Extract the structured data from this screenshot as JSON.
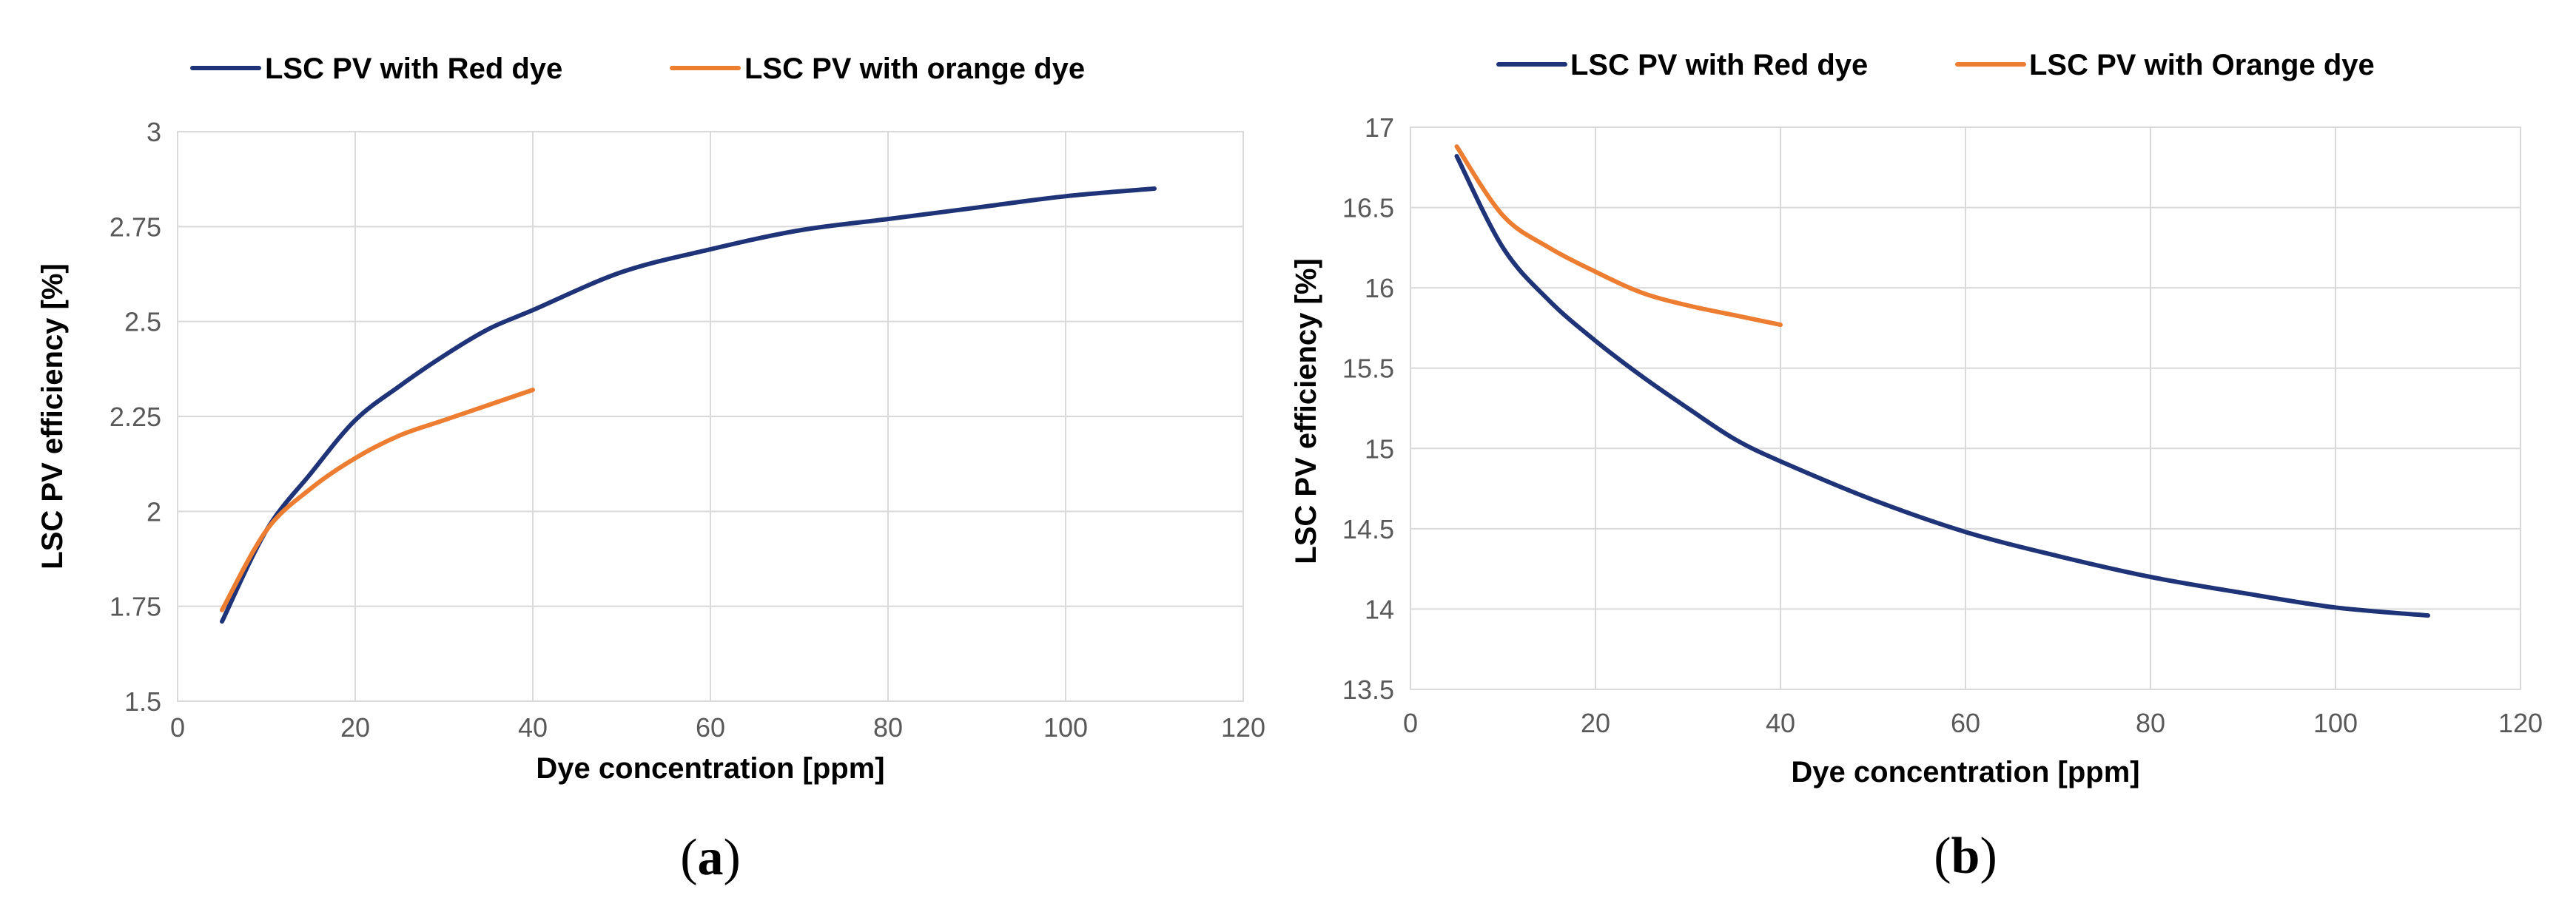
{
  "colors": {
    "red_dye_line": "#1f3478",
    "orange_dye_line": "#ed7d31"
  },
  "chart_data": [
    {
      "id": "a",
      "type": "line",
      "panel_label": "a",
      "xlabel": "Dye concentration [ppm]",
      "ylabel": "LSC PV efficiency [%]",
      "xlim": [
        0,
        120
      ],
      "ylim": [
        1.5,
        3
      ],
      "x_ticks": [
        0,
        20,
        40,
        60,
        80,
        100,
        120
      ],
      "y_ticks": [
        1.5,
        1.75,
        2,
        2.25,
        2.5,
        2.75,
        3
      ],
      "x_tick_labels": [
        "0",
        "20",
        "40",
        "60",
        "80",
        "100",
        "120"
      ],
      "y_tick_labels": [
        "1.5",
        "1.75",
        "2",
        "2.25",
        "2.5",
        "2.75",
        "3"
      ],
      "legend_position": "top",
      "series": [
        {
          "name": "LSC PV with Red dye",
          "color": "#1f3478",
          "x": [
            5,
            10,
            15,
            20,
            25,
            30,
            35,
            40,
            50,
            60,
            70,
            80,
            90,
            100,
            110
          ],
          "y": [
            1.71,
            1.95,
            2.1,
            2.24,
            2.33,
            2.41,
            2.48,
            2.53,
            2.63,
            2.69,
            2.74,
            2.77,
            2.8,
            2.83,
            2.85
          ]
        },
        {
          "name": "LSC PV with orange dye",
          "color": "#ed7d31",
          "x": [
            5,
            10,
            15,
            20,
            25,
            30,
            35,
            40
          ],
          "y": [
            1.74,
            1.95,
            2.06,
            2.14,
            2.2,
            2.24,
            2.28,
            2.32
          ]
        }
      ]
    },
    {
      "id": "b",
      "type": "line",
      "panel_label": "b",
      "xlabel": "Dye concentration [ppm]",
      "ylabel": "LSC PV efficiency [%]",
      "xlim": [
        0,
        120
      ],
      "ylim": [
        13.5,
        17
      ],
      "x_ticks": [
        0,
        20,
        40,
        60,
        80,
        100,
        120
      ],
      "y_ticks": [
        13.5,
        14,
        14.5,
        15,
        15.5,
        16,
        16.5,
        17
      ],
      "x_tick_labels": [
        "0",
        "20",
        "40",
        "60",
        "80",
        "100",
        "120"
      ],
      "y_tick_labels": [
        "13.5",
        "14",
        "14.5",
        "15",
        "15.5",
        "16",
        "16.5",
        "17"
      ],
      "legend_position": "top",
      "series": [
        {
          "name": "LSC PV with Red dye",
          "color": "#1f3478",
          "x": [
            5,
            10,
            15,
            20,
            25,
            30,
            35,
            40,
            50,
            60,
            70,
            80,
            90,
            100,
            110
          ],
          "y": [
            16.82,
            16.25,
            15.92,
            15.67,
            15.45,
            15.25,
            15.06,
            14.92,
            14.68,
            14.48,
            14.33,
            14.2,
            14.1,
            14.01,
            13.96
          ]
        },
        {
          "name": "LSC PV with Orange dye",
          "color": "#ed7d31",
          "x": [
            5,
            10,
            15,
            20,
            25,
            30,
            35,
            40
          ],
          "y": [
            16.88,
            16.45,
            16.25,
            16.1,
            15.97,
            15.89,
            15.83,
            15.77
          ]
        }
      ]
    }
  ]
}
